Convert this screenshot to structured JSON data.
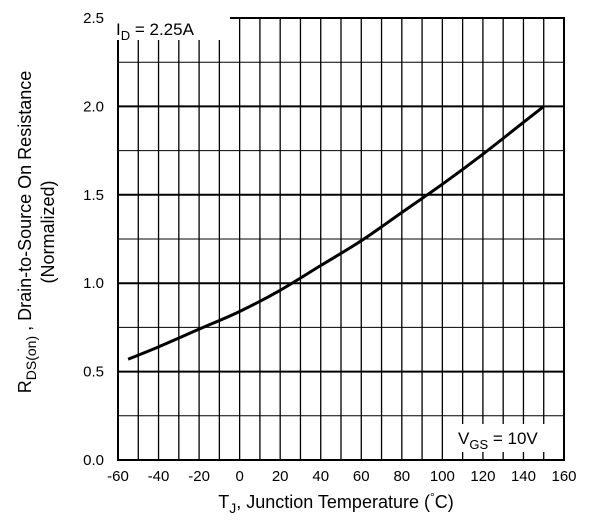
{
  "chart_data": {
    "type": "line",
    "xlabel": {
      "main": "T",
      "sub": "J",
      "rest": ", Junction Temperature  (",
      "deg": "°",
      "unit": "C)"
    },
    "ylabel": {
      "main": "R",
      "sub": "DS(on)",
      "rest": "  , Drain-to-Source On Resistance"
    },
    "ylabel2": "(Normalized)",
    "xlim": [
      -60,
      160
    ],
    "ylim": [
      0.0,
      2.5
    ],
    "xticks": [
      -60,
      -40,
      -20,
      0,
      20,
      40,
      60,
      80,
      100,
      120,
      140,
      160
    ],
    "yticks": [
      "0.0",
      "0.5",
      "1.0",
      "1.5",
      "2.0",
      "2.5"
    ],
    "x_minor_step": 10,
    "y_minor_step": 0.25,
    "grid": true,
    "annotations": {
      "id": {
        "main": "I",
        "sub": "D",
        "rest": " = 2.25A"
      },
      "vgs": {
        "main": "V",
        "sub": "GS",
        "rest": " = 10V"
      }
    },
    "series": [
      {
        "x": [
          -55,
          -40,
          -20,
          0,
          20,
          40,
          60,
          80,
          100,
          120,
          140,
          150
        ],
        "y": [
          0.57,
          0.64,
          0.74,
          0.84,
          0.96,
          1.1,
          1.24,
          1.4,
          1.56,
          1.73,
          1.91,
          2.0
        ]
      }
    ]
  }
}
